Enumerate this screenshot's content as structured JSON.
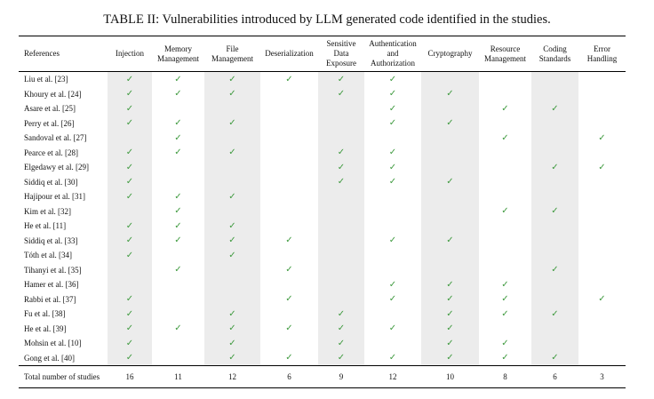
{
  "caption": "TABLE II: Vulnerabilities introduced by LLM generated code identified in the studies.",
  "tick_symbol": "✓",
  "tick_color": "#3f9a3f",
  "shade_color": "#ececec",
  "columns": [
    "References",
    "Injection",
    "Memory Management",
    "File Management",
    "Deserialization",
    "Sensitive Data Exposure",
    "Authentication and Authorization",
    "Cryptography",
    "Resource Management",
    "Coding Standards",
    "Error Handling"
  ],
  "rows": [
    {
      "ref": "Liu et al. [23]",
      "checks": [
        1,
        1,
        1,
        1,
        1,
        1,
        0,
        0,
        0,
        0
      ]
    },
    {
      "ref": "Khoury et al. [24]",
      "checks": [
        1,
        1,
        1,
        0,
        1,
        1,
        1,
        0,
        0,
        0
      ]
    },
    {
      "ref": "Asare et al. [25]",
      "checks": [
        1,
        0,
        0,
        0,
        0,
        1,
        0,
        1,
        1,
        0
      ]
    },
    {
      "ref": "Perry et al. [26]",
      "checks": [
        1,
        1,
        1,
        0,
        0,
        1,
        1,
        0,
        0,
        0
      ]
    },
    {
      "ref": "Sandoval et al. [27]",
      "checks": [
        0,
        1,
        0,
        0,
        0,
        0,
        0,
        1,
        0,
        1
      ]
    },
    {
      "ref": "Pearce et al. [28]",
      "checks": [
        1,
        1,
        1,
        0,
        1,
        1,
        0,
        0,
        0,
        0
      ]
    },
    {
      "ref": "Elgedawy et al. [29]",
      "checks": [
        1,
        0,
        0,
        0,
        1,
        1,
        0,
        0,
        1,
        1
      ]
    },
    {
      "ref": "Siddiq et al. [30]",
      "checks": [
        1,
        0,
        0,
        0,
        1,
        1,
        1,
        0,
        0,
        0
      ]
    },
    {
      "ref": "Hajipour et al. [31]",
      "checks": [
        1,
        1,
        1,
        0,
        0,
        0,
        0,
        0,
        0,
        0
      ]
    },
    {
      "ref": "Kim et al. [32]",
      "checks": [
        0,
        1,
        0,
        0,
        0,
        0,
        0,
        1,
        1,
        0
      ]
    },
    {
      "ref": "He et al. [11]",
      "checks": [
        1,
        1,
        1,
        0,
        0,
        0,
        0,
        0,
        0,
        0
      ]
    },
    {
      "ref": "Siddiq et al. [33]",
      "checks": [
        1,
        1,
        1,
        1,
        0,
        1,
        1,
        0,
        0,
        0
      ]
    },
    {
      "ref": "Tóth et al. [34]",
      "checks": [
        1,
        0,
        1,
        0,
        0,
        0,
        0,
        0,
        0,
        0
      ]
    },
    {
      "ref": "Tihanyi et al. [35]",
      "checks": [
        0,
        1,
        0,
        1,
        0,
        0,
        0,
        0,
        1,
        0
      ]
    },
    {
      "ref": "Hamer et al. [36]",
      "checks": [
        0,
        0,
        0,
        0,
        0,
        1,
        1,
        1,
        0,
        0
      ]
    },
    {
      "ref": "Rabbi et al. [37]",
      "checks": [
        1,
        0,
        0,
        1,
        0,
        1,
        1,
        1,
        0,
        1
      ]
    },
    {
      "ref": "Fu et al. [38]",
      "checks": [
        1,
        0,
        1,
        0,
        1,
        0,
        1,
        1,
        1,
        0
      ]
    },
    {
      "ref": "He et al. [39]",
      "checks": [
        1,
        1,
        1,
        1,
        1,
        1,
        1,
        0,
        0,
        0
      ]
    },
    {
      "ref": "Mohsin et al. [10]",
      "checks": [
        1,
        0,
        1,
        0,
        1,
        0,
        1,
        1,
        0,
        0
      ]
    },
    {
      "ref": "Gong et al. [40]",
      "checks": [
        1,
        0,
        1,
        1,
        1,
        1,
        1,
        1,
        1,
        0
      ]
    }
  ],
  "total_label": "Total number of studies",
  "totals": [
    "16",
    "11",
    "12",
    "6",
    "9",
    "12",
    "10",
    "8",
    "6",
    "3"
  ]
}
